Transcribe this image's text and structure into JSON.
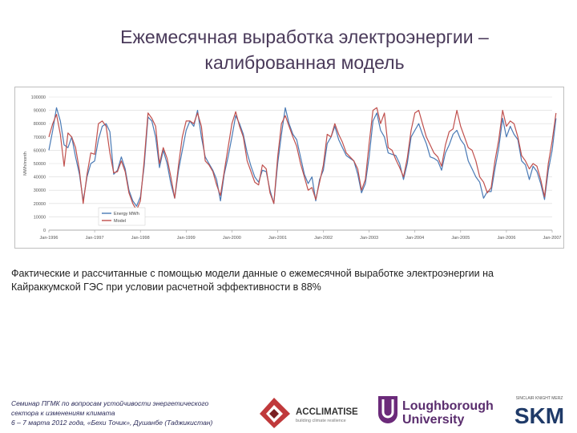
{
  "slide": {
    "title_line1": "Ежемесячная выработка электроэнергии –",
    "title_line2": "калиброванная модель",
    "caption": "Фактические и рассчитанные с помощью модели данные о ежемесячной выработке электроэнергии на Кайраккумской ГЭС при условии расчетной эффективности в 88%",
    "footer_line1": "Семинар ПГМК по вопросам устойчивости энергетического",
    "footer_line2": "сектора к изменениям климата",
    "footer_line3": "6 – 7 марта 2012 года, «Бехи Точик», Душанбе (Таджикистан)"
  },
  "logos": {
    "acclimatise": "ACCLIMATISE",
    "acclimatise_sub": "building climate resilience",
    "loughborough_1": "Loughborough",
    "loughborough_2": "University",
    "skm_top": "SINCLAIR KNIGHT MERZ",
    "skm": "SKM"
  },
  "colors": {
    "energy": "#4a7ab5",
    "model": "#c0504d",
    "grid": "#d9d9d9",
    "title": "#4a3a5a"
  },
  "chart_data": {
    "type": "line",
    "ylabel": "MWh/month",
    "ylim": [
      0,
      100000
    ],
    "yticks": [
      0,
      10000,
      20000,
      30000,
      40000,
      50000,
      60000,
      70000,
      80000,
      90000,
      100000
    ],
    "xticks": [
      "Jan-1996",
      "Jan-1997",
      "Jan-1998",
      "Jan-1999",
      "Jan-2000",
      "Jan-2001",
      "Jan-2002",
      "Jan-2003",
      "Jan-2004",
      "Jan-2005",
      "Jan-2006",
      "Jan-2007"
    ],
    "x_start": "Jan-1996",
    "grid": true,
    "legend_position": "lower-left",
    "series": [
      {
        "name": "Energy MWh",
        "values": [
          60000,
          75000,
          92000,
          82000,
          64000,
          62000,
          70000,
          55000,
          42000,
          22000,
          40000,
          50000,
          52000,
          68000,
          78000,
          80000,
          74000,
          42000,
          45000,
          55000,
          46000,
          30000,
          22000,
          18000,
          25000,
          48000,
          85000,
          82000,
          70000,
          47000,
          60000,
          50000,
          35000,
          24000,
          45000,
          60000,
          75000,
          82000,
          78000,
          90000,
          70000,
          55000,
          50000,
          45000,
          38000,
          22000,
          42000,
          55000,
          70000,
          86000,
          80000,
          72000,
          58000,
          48000,
          40000,
          36000,
          45000,
          44000,
          30000,
          20000,
          50000,
          72000,
          92000,
          80000,
          72000,
          68000,
          55000,
          42000,
          35000,
          40000,
          22000,
          38000,
          45000,
          65000,
          70000,
          78000,
          68000,
          62000,
          56000,
          54000,
          52000,
          42000,
          28000,
          35000,
          55000,
          82000,
          88000,
          75000,
          70000,
          58000,
          57000,
          56000,
          50000,
          38000,
          50000,
          70000,
          75000,
          80000,
          72000,
          65000,
          55000,
          54000,
          52000,
          45000,
          58000,
          64000,
          72000,
          75000,
          68000,
          64000,
          52000,
          46000,
          40000,
          36000,
          24000,
          29000,
          29000,
          46000,
          62000,
          84000,
          70000,
          78000,
          72000,
          68000,
          52000,
          49000,
          38000,
          48000,
          44000,
          35000,
          23000,
          45000,
          60000,
          84000
        ]
      },
      {
        "name": "Model",
        "values": [
          70000,
          80000,
          87000,
          72000,
          48000,
          73000,
          70000,
          62000,
          45000,
          20000,
          42000,
          58000,
          57000,
          80000,
          82000,
          78000,
          58000,
          43000,
          44000,
          52000,
          44000,
          28000,
          20000,
          15000,
          22000,
          52000,
          88000,
          84000,
          78000,
          50000,
          62000,
          54000,
          40000,
          24000,
          49000,
          70000,
          82000,
          82000,
          80000,
          88000,
          78000,
          52000,
          49000,
          44000,
          34000,
          26000,
          44000,
          62000,
          80000,
          89000,
          78000,
          70000,
          52000,
          44000,
          36000,
          34000,
          49000,
          46000,
          28000,
          20000,
          55000,
          80000,
          86000,
          78000,
          70000,
          63000,
          50000,
          40000,
          30000,
          32000,
          23000,
          36000,
          49000,
          72000,
          70000,
          80000,
          72000,
          66000,
          58000,
          55000,
          52000,
          46000,
          30000,
          38000,
          65000,
          90000,
          92000,
          80000,
          88000,
          62000,
          60000,
          53000,
          47000,
          40000,
          54000,
          75000,
          88000,
          90000,
          80000,
          70000,
          64000,
          58000,
          55000,
          48000,
          64000,
          74000,
          76000,
          90000,
          78000,
          70000,
          62000,
          60000,
          52000,
          40000,
          36000,
          28000,
          32000,
          52000,
          68000,
          90000,
          78000,
          82000,
          80000,
          70000,
          56000,
          52000,
          46000,
          50000,
          48000,
          38000,
          25000,
          50000,
          67000,
          88000
        ]
      }
    ]
  }
}
